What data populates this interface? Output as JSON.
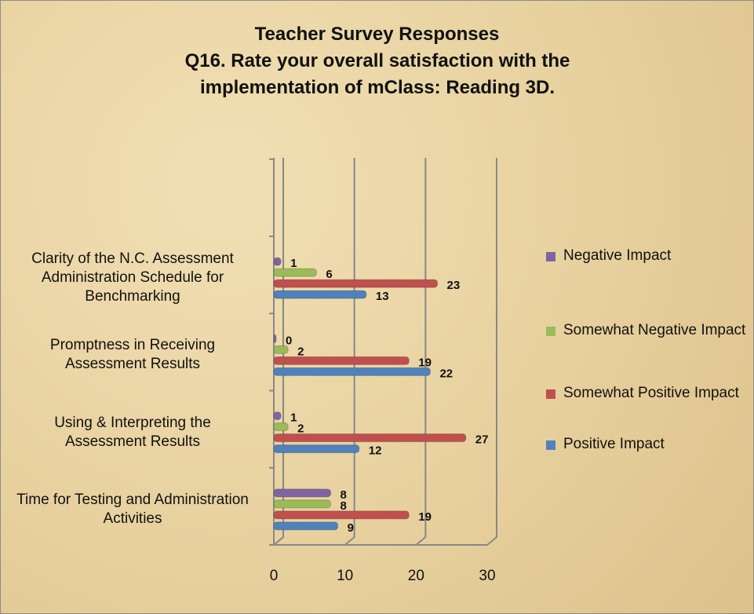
{
  "chart_data": {
    "type": "bar",
    "orientation": "horizontal",
    "title": "Teacher Survey Responses",
    "subtitle": "Q16.  Rate your overall satisfaction with the implementation of mClass: Reading 3D.",
    "categories": [
      "Clarity of the N.C. Assessment Administration Schedule for Benchmarking",
      "Promptness in Receiving Assessment Results",
      "Using & Interpreting the Assessment Results",
      "Time for Testing and Administration Activities"
    ],
    "series": [
      {
        "name": "Negative Impact",
        "color": "#8064a2",
        "values": [
          1,
          0,
          1,
          8
        ]
      },
      {
        "name": "Somewhat Negative Impact",
        "color": "#9bbb59",
        "values": [
          6,
          2,
          2,
          8
        ]
      },
      {
        "name": "Somewhat Positive Impact",
        "color": "#c0504d",
        "values": [
          23,
          19,
          27,
          19
        ]
      },
      {
        "name": "Positive Impact",
        "color": "#4f81bd",
        "values": [
          13,
          22,
          12,
          9
        ]
      }
    ],
    "xlim": [
      0,
      30
    ],
    "xticks": [
      0,
      10,
      20,
      30
    ],
    "grid": true,
    "legend": "right"
  }
}
